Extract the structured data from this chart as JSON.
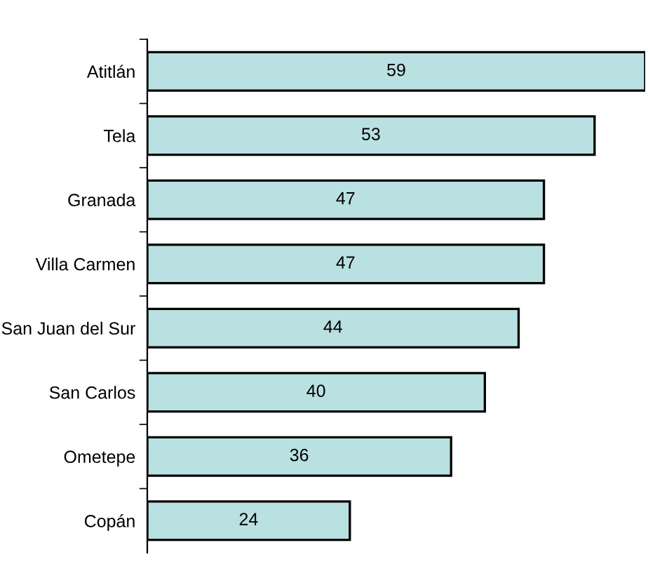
{
  "chart_data": {
    "type": "bar",
    "orientation": "horizontal",
    "categories": [
      "Atitlán",
      "Tela",
      "Granada",
      "Villa Carmen",
      "San Juan del Sur",
      "San Carlos",
      "Ometepe",
      "Copán"
    ],
    "values": [
      59,
      53,
      47,
      47,
      44,
      40,
      36,
      24
    ],
    "color": "#b9e1e2",
    "data_labels": true,
    "grid": false,
    "legend": false
  }
}
